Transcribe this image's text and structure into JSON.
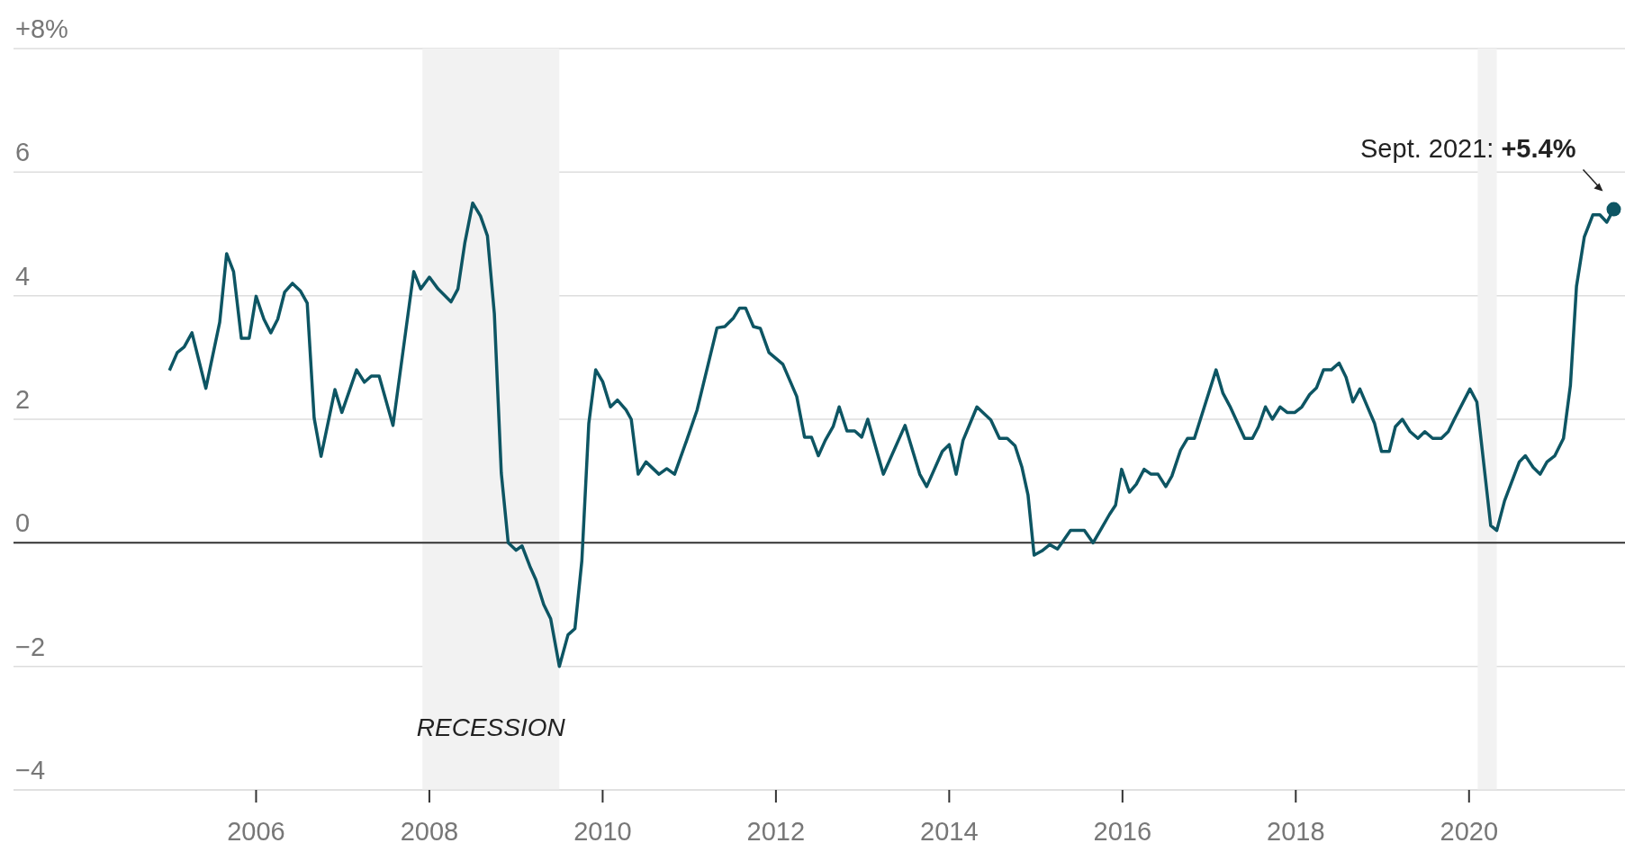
{
  "chart_data": {
    "type": "line",
    "x": [
      2005.0,
      2005.09,
      2005.17,
      2005.26,
      2005.42,
      2005.58,
      2005.66,
      2005.74,
      2005.83,
      2005.92,
      2006.0,
      2006.09,
      2006.17,
      2006.25,
      2006.33,
      2006.42,
      2006.51,
      2006.59,
      2006.67,
      2006.75,
      2006.91,
      2006.99,
      2007.16,
      2007.25,
      2007.33,
      2007.42,
      2007.58,
      2007.82,
      2007.9,
      2008.0,
      2008.1,
      2008.25,
      2008.33,
      2008.41,
      2008.5,
      2008.59,
      2008.67,
      2008.75,
      2008.83,
      2008.91,
      2009.0,
      2009.07,
      2009.16,
      2009.23,
      2009.32,
      2009.4,
      2009.5,
      2009.6,
      2009.68,
      2009.76,
      2009.84,
      2009.92,
      2010.0,
      2010.09,
      2010.17,
      2010.27,
      2010.33,
      2010.41,
      2010.5,
      2010.65,
      2010.74,
      2010.83,
      2010.97,
      2011.09,
      2011.32,
      2011.41,
      2011.51,
      2011.58,
      2011.65,
      2011.74,
      2011.82,
      2011.92,
      2012.08,
      2012.24,
      2012.33,
      2012.41,
      2012.49,
      2012.57,
      2012.66,
      2012.73,
      2012.82,
      2012.91,
      2012.99,
      2013.06,
      2013.24,
      2013.49,
      2013.66,
      2013.74,
      2013.92,
      2014.0,
      2014.08,
      2014.16,
      2014.32,
      2014.48,
      2014.58,
      2014.67,
      2014.76,
      2014.84,
      2014.91,
      2014.98,
      2015.07,
      2015.16,
      2015.25,
      2015.4,
      2015.56,
      2015.66,
      2015.76,
      2015.85,
      2015.92,
      2015.99,
      2016.08,
      2016.16,
      2016.25,
      2016.33,
      2016.41,
      2016.5,
      2016.57,
      2016.67,
      2016.75,
      2016.83,
      2017.08,
      2017.16,
      2017.24,
      2017.41,
      2017.5,
      2017.57,
      2017.65,
      2017.73,
      2017.82,
      2017.9,
      2017.99,
      2018.07,
      2018.16,
      2018.24,
      2018.32,
      2018.41,
      2018.5,
      2018.58,
      2018.66,
      2018.74,
      2018.91,
      2018.99,
      2019.08,
      2019.15,
      2019.23,
      2019.32,
      2019.41,
      2019.49,
      2019.58,
      2019.68,
      2019.76,
      2019.83,
      2020.01,
      2020.09,
      2020.25,
      2020.32,
      2020.41,
      2020.58,
      2020.65,
      2020.74,
      2020.82,
      2020.9,
      2020.99,
      2021.09,
      2021.17,
      2021.24,
      2021.33,
      2021.43,
      2021.51,
      2021.59,
      2021.67
    ],
    "series": [
      {
        "color": "#0d5563",
        "values": [
          2.79,
          3.08,
          3.17,
          3.4,
          2.5,
          3.57,
          4.68,
          4.39,
          3.31,
          3.31,
          3.99,
          3.62,
          3.4,
          3.62,
          4.06,
          4.2,
          4.08,
          3.88,
          2.02,
          1.4,
          2.48,
          2.11,
          2.8,
          2.6,
          2.7,
          2.7,
          1.9,
          4.39,
          4.11,
          4.3,
          4.11,
          3.9,
          4.11,
          4.86,
          5.5,
          5.29,
          4.97,
          3.71,
          1.13,
          0,
          -0.12,
          -0.05,
          -0.38,
          -0.6,
          -1.0,
          -1.23,
          -2.0,
          -1.49,
          -1.39,
          -0.29,
          1.93,
          2.8,
          2.61,
          2.2,
          2.31,
          2.15,
          2.0,
          1.11,
          1.31,
          1.11,
          1.2,
          1.11,
          1.66,
          2.15,
          3.48,
          3.5,
          3.64,
          3.8,
          3.8,
          3.5,
          3.47,
          3.08,
          2.89,
          2.37,
          1.71,
          1.71,
          1.41,
          1.66,
          1.88,
          2.2,
          1.81,
          1.81,
          1.71,
          2.0,
          1.11,
          1.9,
          1.11,
          0.91,
          1.48,
          1.59,
          1.11,
          1.66,
          2.2,
          1.99,
          1.69,
          1.69,
          1.57,
          1.22,
          0.77,
          -0.2,
          -0.13,
          -0.03,
          -0.1,
          0.2,
          0.2,
          0.0,
          0.24,
          0.46,
          0.61,
          1.19,
          0.82,
          0.95,
          1.19,
          1.11,
          1.11,
          0.91,
          1.08,
          1.5,
          1.69,
          1.69,
          2.8,
          2.42,
          2.21,
          1.69,
          1.69,
          1.88,
          2.2,
          2.0,
          2.2,
          2.11,
          2.11,
          2.2,
          2.4,
          2.51,
          2.8,
          2.8,
          2.91,
          2.68,
          2.28,
          2.49,
          1.93,
          1.48,
          1.48,
          1.88,
          2.0,
          1.8,
          1.69,
          1.8,
          1.69,
          1.69,
          1.8,
          2.0,
          2.49,
          2.28,
          0.28,
          0.2,
          0.68,
          1.31,
          1.41,
          1.22,
          1.11,
          1.31,
          1.41,
          1.69,
          2.55,
          4.15,
          4.95,
          5.31,
          5.31,
          5.19,
          5.4
        ]
      }
    ],
    "xlim": [
      2003.2,
      2021.8
    ],
    "xticks": [
      2006,
      2008,
      2010,
      2012,
      2014,
      2016,
      2018,
      2020
    ],
    "ylim": [
      -4,
      8
    ],
    "yticks": [
      {
        "value": -4,
        "label": "−4"
      },
      {
        "value": -2,
        "label": "−2"
      },
      0,
      2,
      4,
      6,
      {
        "value": 8,
        "label": "+8%"
      }
    ],
    "grid": "y",
    "marker": "none",
    "line_style": "solid",
    "ref_lines": [
      {
        "axis": "y",
        "value": 0,
        "color": "#333333"
      }
    ],
    "bands": [
      {
        "axis": "x",
        "from": 2007.92,
        "to": 2009.5,
        "label": "RECESSION",
        "color": "#f2f2f2"
      },
      {
        "axis": "x",
        "from": 2020.1,
        "to": 2020.32,
        "color": "#f2f2f2"
      }
    ],
    "annotations": [
      {
        "text": "Sept. 2021: +5.4%",
        "x": 2021.67,
        "y": 5.4
      }
    ]
  }
}
